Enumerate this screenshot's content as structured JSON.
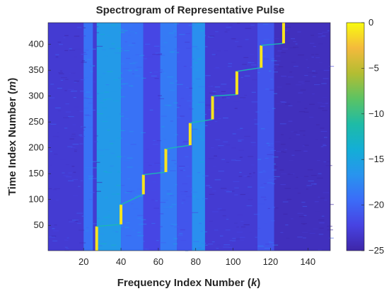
{
  "chart_data": {
    "type": "heatmap",
    "title": "Spectrogram of Representative Pulse",
    "xlabel": {
      "prefix": "Frequency Index Number (",
      "var": "k",
      "suffix": ")"
    },
    "ylabel": {
      "prefix": "Time Index Number (",
      "var": "m",
      "suffix": ")"
    },
    "xlim": [
      1,
      152
    ],
    "ylim": [
      1,
      442
    ],
    "xticks": [
      20,
      40,
      60,
      80,
      100,
      120,
      140
    ],
    "yticks": [
      50,
      100,
      150,
      200,
      250,
      300,
      350,
      400
    ],
    "colorbar": {
      "min": -25,
      "max": 0,
      "ticks": [
        0,
        -5,
        -10,
        -15,
        -20,
        -25
      ],
      "colormap": "parula",
      "colors": [
        "#3e26a8",
        "#4743e2",
        "#3b6cf8",
        "#2894ee",
        "#13aed6",
        "#1ebba6",
        "#5cc363",
        "#b3bd32",
        "#f4ba3c",
        "#f9fb0e"
      ]
    },
    "background_bands": [
      {
        "k_range": [
          1,
          20
        ],
        "level": -23
      },
      {
        "k_range": [
          20,
          25
        ],
        "level": -19
      },
      {
        "k_range": [
          25,
          27
        ],
        "level": -23
      },
      {
        "k_range": [
          27,
          40
        ],
        "level": -16
      },
      {
        "k_range": [
          40,
          52
        ],
        "level": -19
      },
      {
        "k_range": [
          52,
          61
        ],
        "level": -22
      },
      {
        "k_range": [
          61,
          70
        ],
        "level": -18.5
      },
      {
        "k_range": [
          70,
          78
        ],
        "level": -21
      },
      {
        "k_range": [
          78,
          85
        ],
        "level": -17
      },
      {
        "k_range": [
          85,
          113
        ],
        "level": -23
      },
      {
        "k_range": [
          113,
          122
        ],
        "level": -21
      },
      {
        "k_range": [
          122,
          152
        ],
        "level": -24
      }
    ],
    "steps": [
      {
        "k": 27,
        "m_range": [
          1,
          48
        ]
      },
      {
        "k": 40,
        "m_range": [
          52,
          90
        ]
      },
      {
        "k": 52,
        "m_range": [
          110,
          148
        ]
      },
      {
        "k": 64,
        "m_range": [
          153,
          198
        ]
      },
      {
        "k": 77,
        "m_range": [
          205,
          248
        ]
      },
      {
        "k": 89,
        "m_range": [
          255,
          300
        ]
      },
      {
        "k": 102,
        "m_range": [
          303,
          348
        ]
      },
      {
        "k": 115,
        "m_range": [
          355,
          398
        ]
      },
      {
        "k": 127,
        "m_range": [
          402,
          442
        ]
      }
    ],
    "step_level": -1,
    "transition_level": -12
  }
}
